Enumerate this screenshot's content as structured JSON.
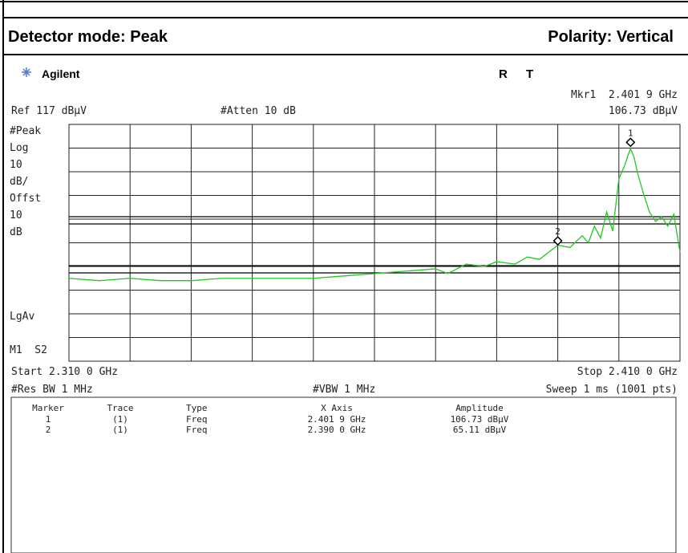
{
  "header": {
    "detector": "Detector mode: Peak",
    "polarity": "Polarity: Vertical"
  },
  "screen": {
    "brand": "Agilent",
    "r": "R",
    "t": "T",
    "mkr": "Mkr1  2.401 9 GHz",
    "ref": "Ref 117 dBµV",
    "atten": "#Atten 10 dB",
    "mkr_amp": "106.73 dBµV",
    "left_labels": [
      "#Peak",
      "Log",
      "10",
      "dB/",
      "Offst",
      "10",
      "dB"
    ],
    "lgav": "LgAv",
    "m1s2": "M1  S2",
    "start": "Start 2.310 0 GHz",
    "stop": "Stop 2.410 0 GHz",
    "rbw": "#Res BW 1 MHz",
    "vbw": "#VBW 1 MHz",
    "sweep": "Sweep 1 ms (1001 pts)"
  },
  "table": {
    "headers": [
      "Marker",
      "Trace",
      "Type",
      "X Axis",
      "Amplitude"
    ],
    "rows": [
      [
        "1",
        "(1)",
        "Freq",
        "2.401 9 GHz",
        "106.73 dBµV"
      ],
      [
        "2",
        "(1)",
        "Freq",
        "2.390 0 GHz",
        "65.11 dBµV"
      ]
    ]
  },
  "chart_data": {
    "type": "line",
    "xlim": [
      2.31,
      2.41
    ],
    "ylim": [
      17,
      117
    ],
    "series": [
      {
        "color": "#22c822",
        "x": [
          2.31,
          2.315,
          2.32,
          2.325,
          2.33,
          2.335,
          2.34,
          2.345,
          2.35,
          2.355,
          2.36,
          2.365,
          2.37,
          2.372,
          2.375,
          2.378,
          2.38,
          2.383,
          2.385,
          2.387,
          2.389,
          2.39,
          2.392,
          2.394,
          2.395,
          2.396,
          2.397,
          2.398,
          2.399,
          2.4,
          2.401,
          2.4015,
          2.4019,
          2.4025,
          2.403,
          2.404,
          2.405,
          2.406,
          2.407,
          2.408,
          2.409,
          2.41
        ],
        "values": [
          52,
          51,
          52,
          51,
          51,
          52,
          52,
          52,
          52,
          53,
          54,
          55,
          56,
          54,
          58,
          57,
          59,
          58,
          61,
          60,
          64,
          66,
          65,
          70,
          67,
          74,
          69,
          80,
          72,
          94,
          100,
          104,
          106.73,
          103,
          97,
          88,
          80,
          76,
          78,
          74,
          79,
          63
        ]
      }
    ],
    "markers": [
      {
        "label": "1",
        "x": 2.4019,
        "y": 106.73
      },
      {
        "label": "2",
        "x": 2.39,
        "y": 65.11
      }
    ]
  }
}
